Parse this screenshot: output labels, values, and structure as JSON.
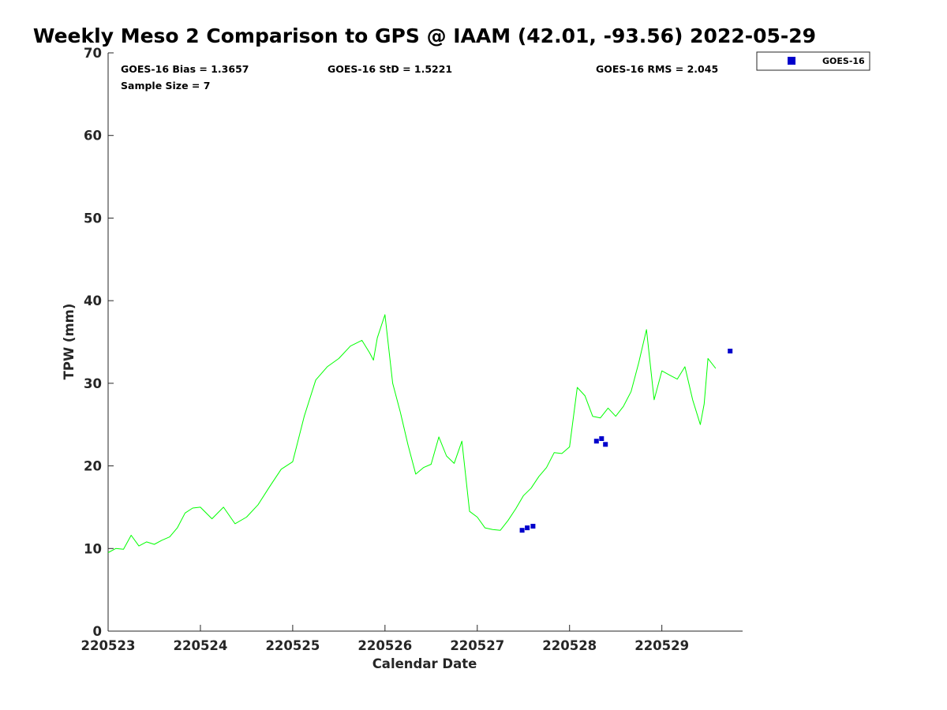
{
  "chart_data": {
    "type": "line",
    "title": "Weekly Meso 2 Comparison to GPS @ IAAM (42.01, -93.56) 2022-05-29",
    "xlabel": "Calendar Date",
    "ylabel": "TPW (mm)",
    "xlim": [
      "2022-05-23",
      "2022-05-29T21:00"
    ],
    "ylim": [
      0,
      70
    ],
    "yticks": [
      0,
      10,
      20,
      30,
      40,
      50,
      60,
      70
    ],
    "xticks": [
      "2022-05-23",
      "2022-05-24",
      "2022-05-25",
      "2022-05-26",
      "2022-05-27",
      "2022-05-28",
      "2022-05-29"
    ],
    "xtick_labels": [
      "220523",
      "220524",
      "220525",
      "220526",
      "220527",
      "220528",
      "220529"
    ],
    "grid": false,
    "legend_position": "outside top-right",
    "stats": {
      "bias": "GOES-16 Bias = 1.3657",
      "std": "GOES-16 StD = 1.5221",
      "rms": "GOES-16 RMS = 2.045",
      "sample": "Sample Size = 7"
    },
    "series": [
      {
        "name": "",
        "kind": "line",
        "color": "#00ff00",
        "x": [
          "2022-05-23T00:00",
          "2022-05-23T02:00",
          "2022-05-23T04:00",
          "2022-05-23T06:00",
          "2022-05-23T08:00",
          "2022-05-23T10:00",
          "2022-05-23T12:00",
          "2022-05-23T14:00",
          "2022-05-23T16:00",
          "2022-05-23T18:00",
          "2022-05-23T20:00",
          "2022-05-23T22:00",
          "2022-05-24T00:00",
          "2022-05-24T03:00",
          "2022-05-24T06:00",
          "2022-05-24T09:00",
          "2022-05-24T12:00",
          "2022-05-24T15:00",
          "2022-05-24T18:00",
          "2022-05-24T21:00",
          "2022-05-25T00:00",
          "2022-05-25T03:00",
          "2022-05-25T06:00",
          "2022-05-25T09:00",
          "2022-05-25T12:00",
          "2022-05-25T15:00",
          "2022-05-25T18:00",
          "2022-05-25T20:00",
          "2022-05-25T21:00",
          "2022-05-25T22:00",
          "2022-05-26T00:00",
          "2022-05-26T02:00",
          "2022-05-26T04:00",
          "2022-05-26T06:00",
          "2022-05-26T08:00",
          "2022-05-26T10:00",
          "2022-05-26T12:00",
          "2022-05-26T14:00",
          "2022-05-26T16:00",
          "2022-05-26T18:00",
          "2022-05-26T20:00",
          "2022-05-26T22:00",
          "2022-05-27T00:00",
          "2022-05-27T02:00",
          "2022-05-27T04:00",
          "2022-05-27T06:00",
          "2022-05-27T08:00",
          "2022-05-27T10:00",
          "2022-05-27T12:00",
          "2022-05-27T14:00",
          "2022-05-27T16:00",
          "2022-05-27T18:00",
          "2022-05-27T20:00",
          "2022-05-27T22:00",
          "2022-05-28T00:00",
          "2022-05-28T02:00",
          "2022-05-28T04:00",
          "2022-05-28T06:00",
          "2022-05-28T08:00",
          "2022-05-28T10:00",
          "2022-05-28T12:00",
          "2022-05-28T14:00",
          "2022-05-28T16:00",
          "2022-05-28T18:00",
          "2022-05-28T20:00",
          "2022-05-28T22:00",
          "2022-05-29T00:00",
          "2022-05-29T02:00",
          "2022-05-29T04:00",
          "2022-05-29T06:00",
          "2022-05-29T08:00",
          "2022-05-29T10:00",
          "2022-05-29T11:00",
          "2022-05-29T12:00",
          "2022-05-29T14:00",
          "2022-05-29T16:00",
          "2022-05-29T18:00",
          "2022-05-29T19:00",
          "2022-05-29T20:00",
          "2022-05-29T21:00"
        ],
        "y": [
          9.5,
          10.0,
          9.9,
          11.6,
          10.3,
          10.8,
          10.5,
          11.0,
          11.4,
          12.5,
          14.3,
          14.9,
          15.0,
          13.6,
          15.0,
          13.0,
          13.8,
          15.3,
          17.5,
          19.6,
          20.5,
          26.0,
          30.4,
          32.0,
          33.0,
          34.5,
          35.2,
          33.7,
          32.8,
          35.5,
          38.3,
          30.0,
          26.5,
          22.5,
          19.0,
          19.8,
          20.2,
          23.5,
          21.2,
          20.3,
          23.0,
          14.5,
          13.8,
          12.5,
          12.3,
          12.2,
          13.4,
          14.8,
          16.4,
          17.3,
          18.7,
          19.8,
          21.6,
          21.5,
          22.3,
          29.5,
          28.5,
          26.0,
          25.8,
          27.0,
          26.0,
          27.2,
          29.0,
          32.5,
          36.5,
          28.0,
          31.5,
          31.0,
          30.5,
          32.0,
          28.0,
          25.0,
          27.5,
          33.0,
          31.8,
          null,
          null,
          null,
          null,
          null
        ]
      },
      {
        "name": "GOES-16",
        "kind": "scatter",
        "marker": "square",
        "color": "#0000cc",
        "x": [
          "2022-05-27T11:40",
          "2022-05-27T13:00",
          "2022-05-27T14:30",
          "2022-05-28T07:00",
          "2022-05-28T08:20",
          "2022-05-28T09:20",
          "2022-05-29T17:45"
        ],
        "y": [
          12.2,
          12.5,
          12.7,
          23.0,
          23.3,
          22.6,
          33.9
        ]
      }
    ]
  }
}
